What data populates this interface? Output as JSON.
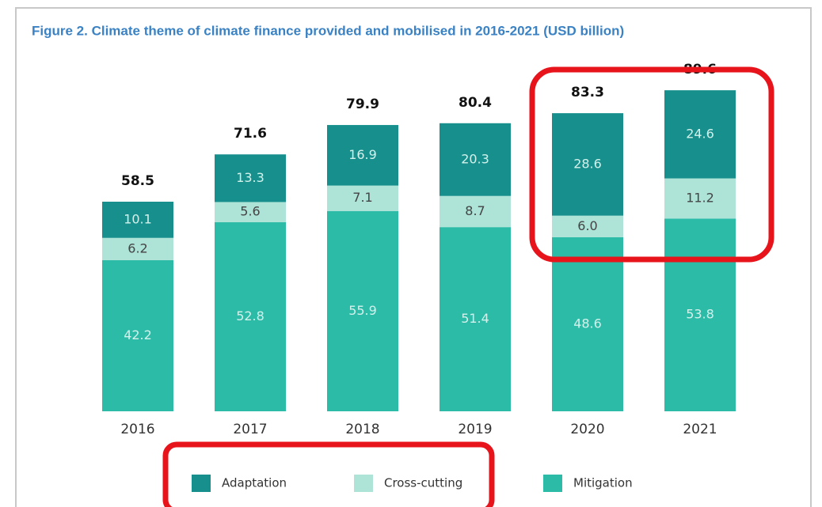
{
  "chart_data": {
    "type": "stacked_bar",
    "title": "Figure 2. Climate theme of climate finance provided and mobilised in 2016-2021 (USD billion)",
    "categories": [
      "2016",
      "2017",
      "2018",
      "2019",
      "2020",
      "2021"
    ],
    "series": [
      {
        "name": "Adaptation",
        "color": "#17908d",
        "values": [
          10.1,
          13.3,
          16.9,
          20.3,
          28.6,
          24.6
        ]
      },
      {
        "name": "Cross-cutting",
        "color": "#aee3d7",
        "values": [
          6.2,
          5.6,
          7.1,
          8.7,
          6.0,
          11.2
        ],
        "value_labels": [
          "6.2",
          "5.6",
          "7.1",
          "8.7",
          "6.0",
          "11.2"
        ]
      },
      {
        "name": "Mitigation",
        "color": "#2cbba7",
        "values": [
          42.2,
          52.8,
          55.9,
          51.4,
          48.6,
          53.8
        ]
      }
    ],
    "totals": [
      58.5,
      71.6,
      79.9,
      80.4,
      83.3,
      89.6
    ]
  }
}
